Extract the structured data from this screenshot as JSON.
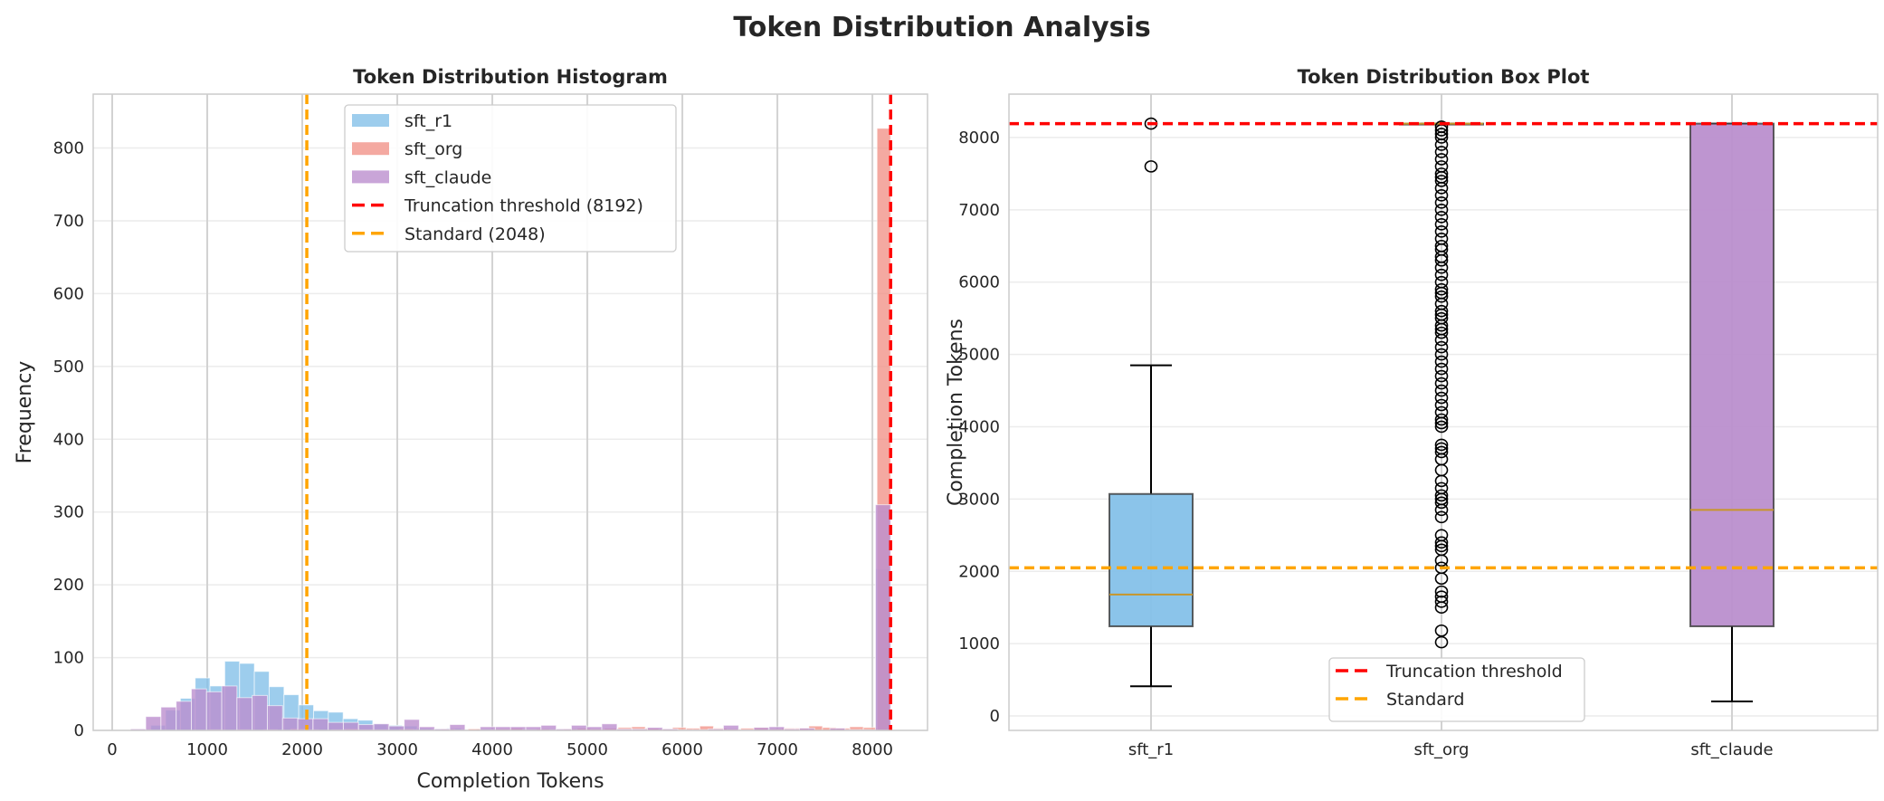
{
  "title": "Token Distribution Analysis",
  "colors": {
    "sft_r1": "#85C1E9",
    "sft_org": "#F1948A",
    "sft_claude": "#BB8FCE",
    "truncation": "#FF0000",
    "standard": "#FFA500",
    "median": "#C8962A"
  },
  "chart_data": [
    {
      "type": "histogram",
      "title": "Token Distribution Histogram",
      "xlabel": "Completion Tokens",
      "ylabel": "Frequency",
      "xlim": [
        -200,
        8580
      ],
      "ylim": [
        0,
        874
      ],
      "xticks": [
        0,
        1000,
        2000,
        3000,
        4000,
        5000,
        6000,
        7000,
        8000
      ],
      "yticks": [
        0,
        100,
        200,
        300,
        400,
        500,
        600,
        700,
        800
      ],
      "grid": true,
      "legend_position": "top-center",
      "series": [
        {
          "name": "sft_r1",
          "bin_start": 406,
          "bin_end": 8192,
          "bins": 50,
          "counts": [
            7,
            28,
            44,
            72,
            61,
            95,
            92,
            81,
            60,
            49,
            35,
            27,
            25,
            16,
            14,
            9,
            7,
            6,
            3,
            2,
            3,
            1,
            2,
            1,
            1,
            1,
            0,
            1,
            1,
            0,
            0,
            0,
            0,
            0,
            0,
            0,
            0,
            0,
            0,
            0,
            0,
            0,
            0,
            0,
            0,
            0,
            1,
            0,
            0,
            222
          ]
        },
        {
          "name": "sft_org",
          "bin_start": 1020,
          "bin_end": 8192,
          "bins": 50,
          "counts": [
            1,
            0,
            1,
            0,
            1,
            0,
            2,
            1,
            0,
            1,
            2,
            1,
            1,
            0,
            2,
            1,
            1,
            2,
            1,
            2,
            1,
            2,
            3,
            1,
            2,
            1,
            2,
            3,
            2,
            3,
            4,
            5,
            3,
            2,
            4,
            3,
            6,
            3,
            2,
            3,
            4,
            2,
            3,
            3,
            6,
            4,
            3,
            5,
            4,
            827
          ]
        },
        {
          "name": "sft_claude",
          "bin_start": 193,
          "bin_end": 8192,
          "bins": 50,
          "counts": [
            2,
            19,
            32,
            40,
            57,
            53,
            61,
            45,
            48,
            34,
            17,
            16,
            16,
            11,
            11,
            8,
            9,
            6,
            15,
            5,
            2,
            8,
            0,
            5,
            5,
            5,
            5,
            7,
            2,
            7,
            5,
            9,
            2,
            2,
            4,
            2,
            1,
            1,
            2,
            7,
            1,
            4,
            5,
            2,
            3,
            0,
            3,
            1,
            1,
            310
          ]
        }
      ],
      "reference_lines": [
        {
          "label": "Truncation threshold (8192)",
          "value": 8192,
          "color": "#FF0000"
        },
        {
          "label": "Standard (2048)",
          "value": 2048,
          "color": "#FFA500"
        }
      ]
    },
    {
      "type": "box",
      "title": "Token Distribution Box Plot",
      "ylabel": "Completion Tokens",
      "ylim": [
        -200,
        8600
      ],
      "yticks": [
        0,
        1000,
        2000,
        3000,
        4000,
        5000,
        6000,
        7000,
        8000
      ],
      "categories": [
        "sft_r1",
        "sft_org",
        "sft_claude"
      ],
      "grid": true,
      "legend_position": "bottom-center",
      "boxes": [
        {
          "name": "sft_r1",
          "whisker_low": 410,
          "q1": 1240,
          "median": 1680,
          "q3": 3070,
          "whisker_high": 4850,
          "outliers": [
            7600,
            8192
          ]
        },
        {
          "name": "sft_org",
          "whisker_low": 8192,
          "q1": 8192,
          "median": 8192,
          "q3": 8192,
          "whisker_high": 8192,
          "outliers": [
            1020,
            1180,
            1500,
            1580,
            1650,
            1720,
            1900,
            2050,
            2150,
            2300,
            2350,
            2400,
            2500,
            2750,
            2850,
            2950,
            3000,
            3050,
            3150,
            3250,
            3400,
            3550,
            3650,
            3700,
            3750,
            4000,
            4050,
            4100,
            4200,
            4300,
            4400,
            4500,
            4600,
            4700,
            4800,
            4900,
            5000,
            5100,
            5200,
            5300,
            5350,
            5400,
            5500,
            5550,
            5600,
            5700,
            5800,
            5850,
            5900,
            6000,
            6100,
            6200,
            6300,
            6350,
            6450,
            6500,
            6600,
            6700,
            6800,
            6900,
            7000,
            7100,
            7200,
            7300,
            7400,
            7450,
            7500,
            7600,
            7700,
            7800,
            7900,
            8000,
            8050,
            8100,
            8150
          ]
        },
        {
          "name": "sft_claude",
          "whisker_low": 200,
          "q1": 1240,
          "median": 2850,
          "q3": 8192,
          "whisker_high": 8192,
          "outliers": []
        }
      ],
      "reference_lines": [
        {
          "label": "Truncation threshold",
          "value": 8192,
          "color": "#FF0000"
        },
        {
          "label": "Standard",
          "value": 2048,
          "color": "#FFA500"
        }
      ]
    }
  ]
}
